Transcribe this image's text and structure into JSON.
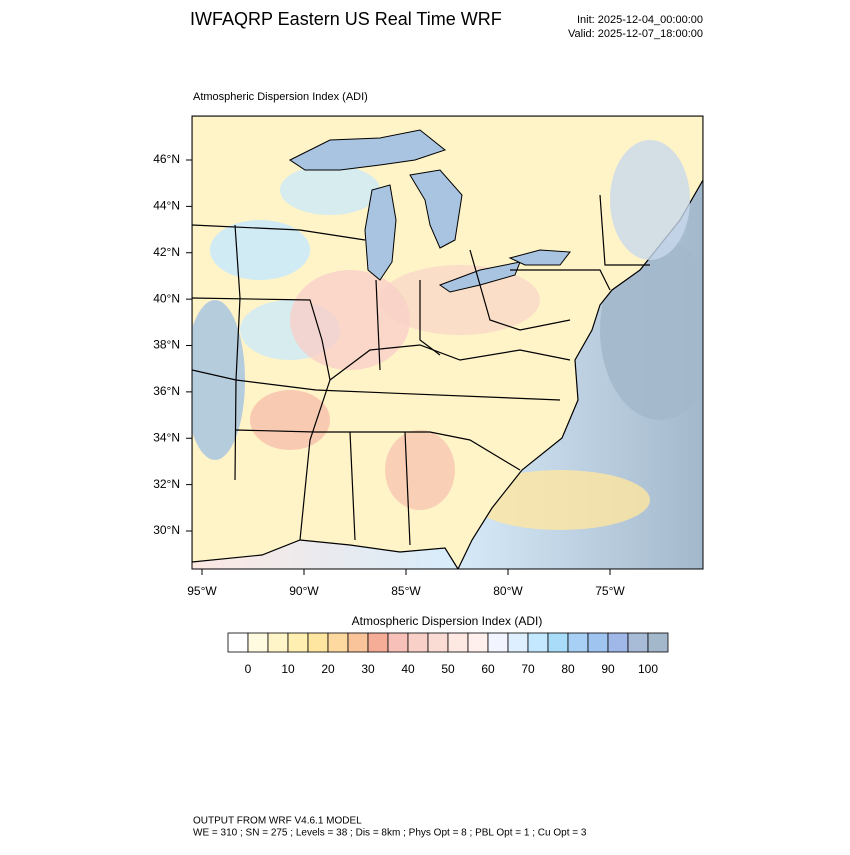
{
  "header": {
    "title": "IWFAQRP Eastern US Real Time WRF",
    "init": "Init: 2025-12-04_00:00:00",
    "valid": "Valid: 2025-12-07_18:00:00"
  },
  "map": {
    "label": "Atmospheric Dispersion Index   (ADI)",
    "lat_ticks": [
      {
        "value": 46,
        "label": "46°N"
      },
      {
        "value": 44,
        "label": "44°N"
      },
      {
        "value": 42,
        "label": "42°N"
      },
      {
        "value": 40,
        "label": "40°N"
      },
      {
        "value": 38,
        "label": "38°N"
      },
      {
        "value": 36,
        "label": "36°N"
      },
      {
        "value": 34,
        "label": "34°N"
      },
      {
        "value": 32,
        "label": "32°N"
      },
      {
        "value": 30,
        "label": "30°N"
      }
    ],
    "lon_ticks": [
      {
        "value": -95,
        "label": "95°W"
      },
      {
        "value": -90,
        "label": "90°W"
      },
      {
        "value": -85,
        "label": "85°W"
      },
      {
        "value": -80,
        "label": "80°W"
      },
      {
        "value": -75,
        "label": "75°W"
      }
    ]
  },
  "colorbar": {
    "title": "Atmospheric Dispersion Index  (ADI)",
    "ticks": [
      0,
      10,
      20,
      30,
      40,
      50,
      60,
      70,
      80,
      90,
      100
    ],
    "colors": [
      "#ffffff",
      "#fffbe0",
      "#fff5c8",
      "#ffefb0",
      "#ffe6a0",
      "#fdd9a0",
      "#f9c49a",
      "#f5ad98",
      "#f7c0b8",
      "#f9d0c8",
      "#fbdcd5",
      "#fde8e2",
      "#fff0ee",
      "#f2f4ff",
      "#def0ff",
      "#c4e8ff",
      "#a8dcf8",
      "#a8d0f5",
      "#a0c4f0",
      "#a0b8e8",
      "#a8bcd8",
      "#a4b8cc"
    ]
  },
  "footer": {
    "line1": "OUTPUT FROM WRF V4.6.1 MODEL",
    "line2": "WE = 310 ; SN = 275 ; Levels = 38 ; Dis = 8km ; Phys Opt = 8 ; PBL Opt = 1 ; Cu Opt = 3"
  }
}
